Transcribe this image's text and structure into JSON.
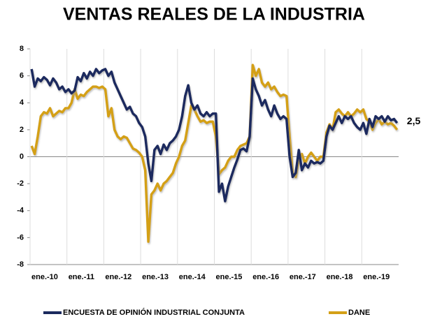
{
  "chart_data": {
    "type": "line",
    "title": "VENTAS REALES DE LA INDUSTRIA",
    "annotation": "2,5",
    "categories": [
      "ene.-10",
      null,
      null,
      null,
      null,
      null,
      null,
      null,
      null,
      null,
      null,
      null,
      "ene.-11",
      null,
      null,
      null,
      null,
      null,
      null,
      null,
      null,
      null,
      null,
      null,
      "ene.-12",
      null,
      null,
      null,
      null,
      null,
      null,
      null,
      null,
      null,
      null,
      null,
      "ene.-13",
      null,
      null,
      null,
      null,
      null,
      null,
      null,
      null,
      null,
      null,
      null,
      "ene.-14",
      null,
      null,
      null,
      null,
      null,
      null,
      null,
      null,
      null,
      null,
      null,
      "ene.-15",
      null,
      null,
      null,
      null,
      null,
      null,
      null,
      null,
      null,
      null,
      null,
      "ene.-16",
      null,
      null,
      null,
      null,
      null,
      null,
      null,
      null,
      null,
      null,
      null,
      "ene.-17",
      null,
      null,
      null,
      null,
      null,
      null,
      null,
      null,
      null,
      null,
      null,
      "ene.-18",
      null,
      null,
      null,
      null,
      null,
      null,
      null,
      null,
      null,
      null,
      null,
      "ene.-19",
      null,
      null,
      null,
      null,
      null,
      null,
      null,
      null,
      null,
      null,
      null
    ],
    "series": [
      {
        "name": "ENCUESTA DE OPINIÓN INDUSTRIAL CONJUNTA",
        "color": "#1b2a5e",
        "values": [
          6.5,
          5.2,
          5.8,
          5.6,
          5.9,
          5.7,
          5.3,
          5.8,
          5.5,
          5.0,
          5.2,
          4.8,
          5.0,
          4.7,
          4.9,
          5.9,
          5.6,
          6.2,
          5.8,
          6.3,
          6.0,
          6.5,
          6.2,
          6.4,
          6.5,
          6.0,
          6.3,
          5.5,
          5.0,
          4.5,
          4.0,
          3.5,
          3.7,
          3.2,
          3.0,
          2.5,
          2.2,
          1.5,
          -0.5,
          -1.8,
          0.5,
          0.8,
          0.2,
          0.9,
          0.5,
          1.0,
          1.2,
          1.5,
          2.0,
          3.0,
          4.5,
          5.3,
          4.0,
          3.5,
          3.8,
          3.2,
          3.0,
          3.3,
          3.0,
          3.2,
          3.2,
          -2.6,
          -2.0,
          -3.3,
          -2.2,
          -1.5,
          -0.8,
          -0.2,
          0.5,
          0.6,
          0.4,
          1.5,
          5.8,
          5.0,
          4.5,
          3.8,
          4.2,
          3.5,
          3.0,
          3.8,
          3.2,
          2.8,
          3.0,
          2.8,
          0.0,
          -1.5,
          -1.2,
          0.5,
          -1.0,
          -0.5,
          -0.8,
          -0.3,
          -0.5,
          -0.4,
          -0.5,
          -0.3,
          1.5,
          2.3,
          2.0,
          2.5,
          3.0,
          2.5,
          3.0,
          2.8,
          3.0,
          2.5,
          2.2,
          2.0,
          2.5,
          1.7,
          2.8,
          2.2,
          3.0,
          2.8,
          3.0,
          2.6,
          3.0,
          2.7,
          2.8,
          2.5
        ]
      },
      {
        "name": "DANE",
        "color": "#d4a017",
        "values": [
          0.8,
          0.2,
          1.5,
          3.0,
          3.3,
          3.2,
          3.6,
          3.0,
          3.2,
          3.4,
          3.3,
          3.6,
          3.6,
          4.0,
          5.0,
          4.3,
          4.6,
          4.5,
          4.8,
          5.0,
          5.2,
          5.2,
          5.1,
          5.2,
          5.0,
          3.0,
          3.6,
          2.0,
          1.5,
          1.3,
          1.5,
          1.4,
          1.0,
          0.6,
          0.5,
          0.3,
          0.0,
          -1.0,
          -6.3,
          -2.8,
          -2.5,
          -2.0,
          -2.5,
          -2.0,
          -1.8,
          -1.5,
          -1.2,
          -0.5,
          0.0,
          0.8,
          1.2,
          2.5,
          3.8,
          3.5,
          3.0,
          2.6,
          2.7,
          2.5,
          2.6,
          2.6,
          1.5,
          -1.3,
          -1.0,
          -0.8,
          -0.3,
          0.0,
          0.0,
          0.5,
          0.8,
          0.9,
          1.0,
          1.5,
          6.8,
          6.0,
          6.5,
          5.5,
          5.2,
          5.5,
          5.0,
          5.2,
          4.8,
          4.5,
          4.6,
          4.5,
          1.5,
          -1.2,
          -1.5,
          -0.2,
          0.2,
          -0.5,
          0.0,
          0.3,
          0.0,
          -0.3,
          0.0,
          0.0,
          1.8,
          2.4,
          2.0,
          3.3,
          3.5,
          3.2,
          3.0,
          3.3,
          3.0,
          3.2,
          3.5,
          3.3,
          3.5,
          2.8,
          2.6,
          2.0,
          2.5,
          2.8,
          2.4,
          2.6,
          2.4,
          2.5,
          2.3,
          2.0
        ]
      }
    ],
    "ylim": [
      -8,
      8
    ],
    "yticks": [
      -8,
      -6,
      -4,
      -2,
      0,
      2,
      4,
      6,
      8
    ],
    "legend": "bottom"
  }
}
